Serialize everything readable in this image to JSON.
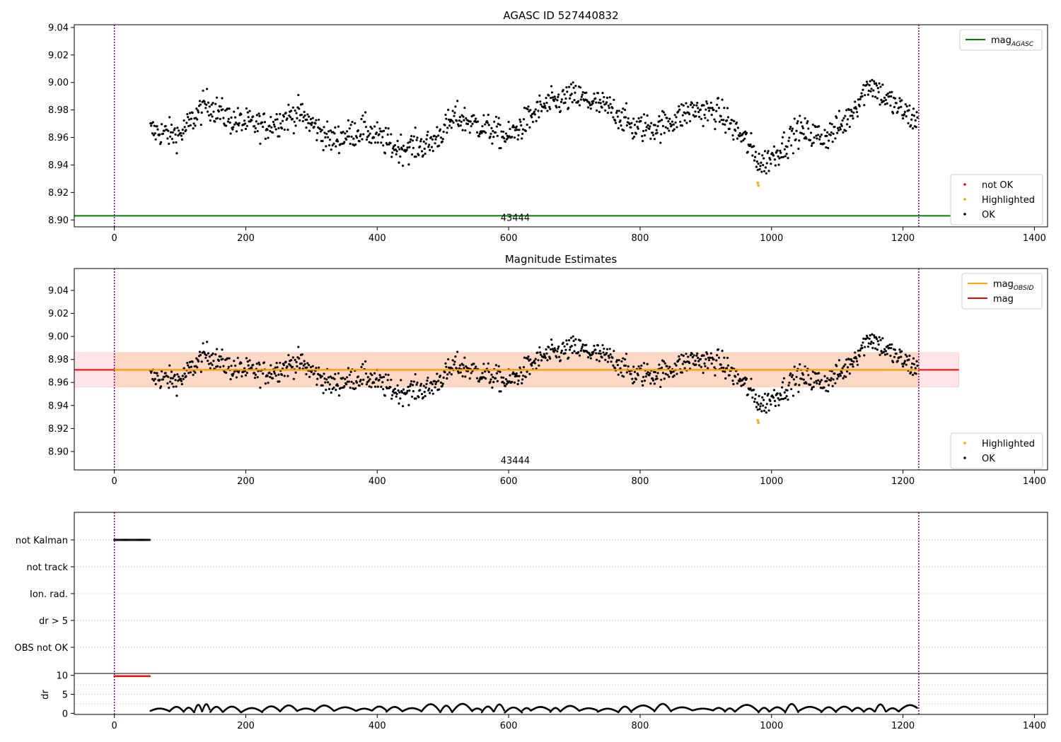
{
  "chart_data": [
    {
      "type": "scatter",
      "title": "AGASC ID 527440832",
      "xlim": [
        -61,
        1420
      ],
      "ylim": [
        8.895,
        9.042
      ],
      "xticks": [
        0,
        200,
        400,
        600,
        800,
        1000,
        1200,
        1400
      ],
      "yticks": [
        8.9,
        8.92,
        8.94,
        8.96,
        8.98,
        9.0,
        9.02,
        9.04
      ],
      "vlines": [
        0,
        1224
      ],
      "hlines": [
        {
          "name": "mag_AGASC",
          "y": 8.903,
          "x_range": [
            -61,
            1285
          ],
          "color": "#008000"
        }
      ],
      "annotation": {
        "x": 610,
        "y": 8.9,
        "text": "43444"
      },
      "series": [
        {
          "name": "not OK",
          "color": "#ff0000",
          "points": []
        },
        {
          "name": "Highlighted",
          "color": "#ffa500",
          "points": [
            [
              979,
              8.927
            ],
            [
              980,
              8.925
            ]
          ]
        },
        {
          "name": "OK",
          "color": "#000000",
          "description_of_trend": "see curve",
          "curve": [
            [
              55,
              8.965
            ],
            [
              80,
              8.963
            ],
            [
              100,
              8.962
            ],
            [
              140,
              8.985
            ],
            [
              180,
              8.972
            ],
            [
              230,
              8.968
            ],
            [
              280,
              8.978
            ],
            [
              330,
              8.958
            ],
            [
              380,
              8.966
            ],
            [
              430,
              8.952
            ],
            [
              480,
              8.955
            ],
            [
              520,
              8.975
            ],
            [
              560,
              8.968
            ],
            [
              600,
              8.96
            ],
            [
              650,
              8.982
            ],
            [
              700,
              8.99
            ],
            [
              760,
              8.98
            ],
            [
              790,
              8.967
            ],
            [
              830,
              8.968
            ],
            [
              880,
              8.98
            ],
            [
              920,
              8.978
            ],
            [
              960,
              8.958
            ],
            [
              985,
              8.94
            ],
            [
              1010,
              8.95
            ],
            [
              1040,
              8.965
            ],
            [
              1080,
              8.96
            ],
            [
              1110,
              8.97
            ],
            [
              1150,
              9.0
            ],
            [
              1175,
              8.988
            ],
            [
              1220,
              8.972
            ]
          ]
        }
      ],
      "legends": [
        {
          "entries": [
            {
              "label": "mag",
              "sub": "AGASC",
              "kind": "line",
              "color": "#008000"
            }
          ],
          "position": "upper right"
        },
        {
          "entries": [
            {
              "label": "not OK",
              "kind": "dot",
              "color": "#ff0000"
            },
            {
              "label": "Highlighted",
              "kind": "dot",
              "color": "#ffa500"
            },
            {
              "label": "OK",
              "kind": "dot",
              "color": "#000000"
            }
          ],
          "position": "lower right"
        }
      ]
    },
    {
      "type": "scatter",
      "title": "Magnitude Estimates",
      "xlim": [
        -61,
        1420
      ],
      "ylim": [
        8.884,
        9.059
      ],
      "xticks": [
        0,
        200,
        400,
        600,
        800,
        1000,
        1200,
        1400
      ],
      "yticks": [
        8.9,
        8.92,
        8.94,
        8.96,
        8.98,
        9.0,
        9.02,
        9.04
      ],
      "vlines": [
        0,
        1224
      ],
      "bands": [
        {
          "x_range": [
            -61,
            1285
          ],
          "y_range": [
            8.956,
            8.986
          ],
          "color": "#ffe4e8"
        },
        {
          "x_range": [
            0,
            1224
          ],
          "y_range": [
            8.956,
            8.986
          ],
          "color": "#fdd8c4"
        }
      ],
      "hlines": [
        {
          "name": "mag",
          "y": 8.971,
          "x_range": [
            -61,
            1285
          ],
          "color": "#ff0000"
        },
        {
          "name": "mag_OBSID",
          "y": 8.971,
          "x_range": [
            0,
            1224
          ],
          "color": "#ffa500"
        }
      ],
      "annotation": {
        "x": 610,
        "y": 8.89,
        "text": "43444"
      },
      "series": [
        {
          "name": "Highlighted",
          "color": "#ffa500",
          "points": [
            [
              979,
              8.927
            ],
            [
              980,
              8.925
            ]
          ]
        },
        {
          "name": "OK",
          "color": "#000000",
          "same_as_top_panel": true
        }
      ],
      "legends": [
        {
          "entries": [
            {
              "label": "mag",
              "sub": "OBSID",
              "kind": "line",
              "color": "#ffa500"
            },
            {
              "label": "mag",
              "sub": "",
              "kind": "line",
              "color": "#ff0000"
            }
          ],
          "position": "upper right"
        },
        {
          "entries": [
            {
              "label": "Highlighted",
              "kind": "dot",
              "color": "#ffa500"
            },
            {
              "label": "OK",
              "kind": "dot",
              "color": "#000000"
            }
          ],
          "position": "lower right"
        }
      ]
    },
    {
      "type": "scatter",
      "title": "",
      "xlim": [
        -61,
        1420
      ],
      "categories": [
        "not Kalman",
        "not track",
        "Ion. rad.",
        "dr > 5",
        "OBS not OK"
      ],
      "vlines": [
        0,
        1224
      ],
      "series": [
        {
          "name": "not Kalman",
          "x_range": [
            0,
            55
          ],
          "color": "#000000"
        },
        {
          "name": "not track",
          "x_range": []
        },
        {
          "name": "Ion. rad.",
          "x_range": []
        },
        {
          "name": "dr > 5",
          "x_range": []
        },
        {
          "name": "OBS not OK",
          "x_range": []
        }
      ]
    },
    {
      "type": "scatter",
      "title": "",
      "xlim": [
        -61,
        1420
      ],
      "ylim": [
        -0.3,
        10.5
      ],
      "ylabel": "dr",
      "xticks": [
        0,
        200,
        400,
        600,
        800,
        1000,
        1200,
        1400
      ],
      "yticks": [
        0,
        5,
        10
      ],
      "vlines": [
        0,
        1224
      ],
      "series": [
        {
          "name": "dr (not tracked)",
          "color": "#ff0000",
          "x_range": [
            0,
            55
          ],
          "y": 9.8
        },
        {
          "name": "dr",
          "color": "#000000",
          "x_range": [
            55,
            1224
          ],
          "y_range": [
            0.2,
            2.5
          ]
        }
      ]
    }
  ]
}
